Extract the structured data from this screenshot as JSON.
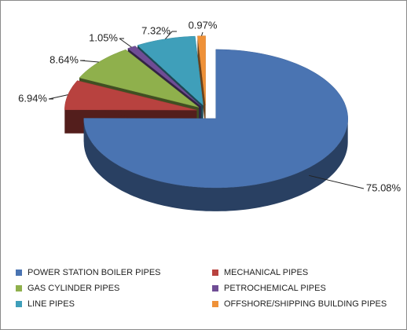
{
  "chart_data": {
    "type": "pie",
    "categories": [
      "POWER STATION BOILER PIPES",
      "MECHANICAL PIPES",
      "GAS CYLINDER PIPES",
      "PETROCHEMICAL PIPES",
      "LINE PIPES",
      "OFFSHORE/SHIPPING BUILDING PIPES"
    ],
    "values": [
      75.08,
      6.94,
      8.64,
      1.05,
      7.32,
      0.97
    ],
    "value_labels": [
      "75.08%",
      "6.94%",
      "8.64%",
      "1.05%",
      "7.32%",
      "0.97%"
    ],
    "colors": [
      "#4a74b2",
      "#b8423f",
      "#8fb04c",
      "#6f4d95",
      "#3f9fba",
      "#ef9138"
    ]
  }
}
